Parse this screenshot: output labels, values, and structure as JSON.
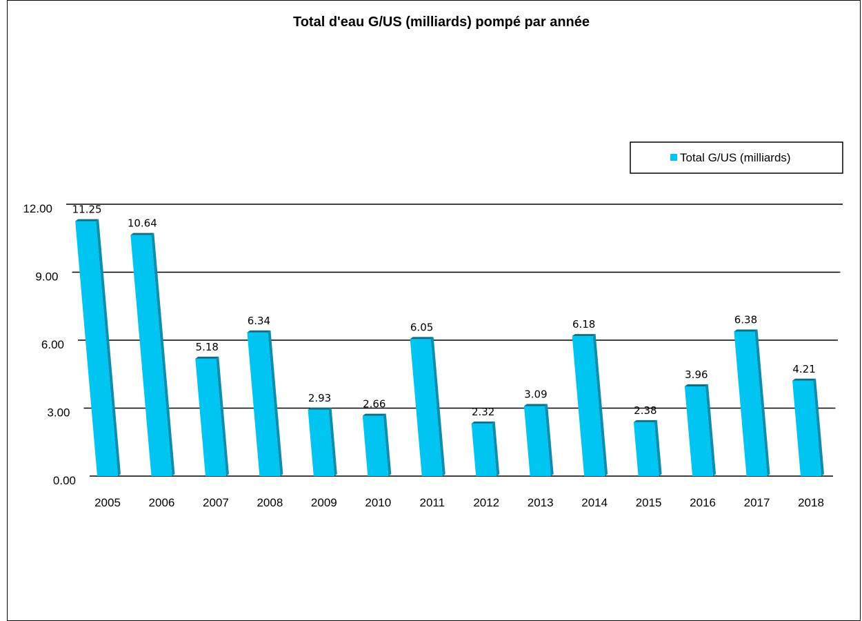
{
  "chart_data": {
    "type": "bar",
    "title": "Total d'eau G/US (milliards) pompé par année",
    "categories": [
      "2005",
      "2006",
      "2007",
      "2008",
      "2009",
      "2010",
      "2011",
      "2012",
      "2013",
      "2014",
      "2015",
      "2016",
      "2017",
      "2018"
    ],
    "series": [
      {
        "name": "Total G/US (milliards)",
        "values": [
          11.25,
          10.64,
          5.18,
          6.34,
          2.93,
          2.66,
          6.05,
          2.32,
          3.09,
          6.18,
          2.38,
          3.96,
          6.38,
          4.21
        ],
        "value_labels": [
          "11.25",
          "10.64",
          "5.18",
          "6.34",
          "2.93",
          "2.66",
          "6.05",
          "2.32",
          "3.09",
          "6.18",
          "2.38",
          "3.96",
          "6.38",
          "4.21"
        ],
        "color": "#00C5F2"
      }
    ],
    "ylim": [
      0,
      12
    ],
    "yticks": [
      "0.00",
      "3.00",
      "6.00",
      "9.00",
      "12.00"
    ],
    "grid": true,
    "legend_position": "top-right",
    "xlabel": "",
    "ylabel": ""
  }
}
